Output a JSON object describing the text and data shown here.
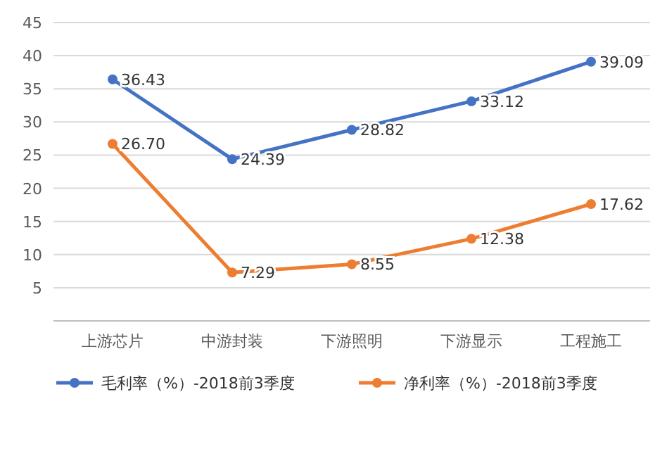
{
  "chart_data": {
    "type": "line",
    "categories": [
      "上游芯片",
      "中游封装",
      "下游照明",
      "下游显示",
      "工程施工"
    ],
    "series": [
      {
        "name": "毛利率（%）-2018前3季度",
        "color": "#4472c4",
        "values": [
          36.43,
          24.39,
          28.82,
          33.12,
          39.09
        ],
        "value_labels": [
          "36.43",
          "24.39",
          "28.82",
          "33.12",
          "39.09"
        ]
      },
      {
        "name": "净利率（%）-2018前3季度",
        "color": "#ed7d31",
        "values": [
          26.7,
          7.29,
          8.55,
          12.38,
          17.62
        ],
        "value_labels": [
          "26.70",
          "7.29",
          "8.55",
          "12.38",
          "17.62"
        ]
      }
    ],
    "ylim": [
      0,
      45
    ],
    "yticks": [
      5,
      10,
      15,
      20,
      25,
      30,
      35,
      40,
      45
    ],
    "grid": "y",
    "legend": "bottom",
    "marker": "circle",
    "line_style": "solid"
  }
}
